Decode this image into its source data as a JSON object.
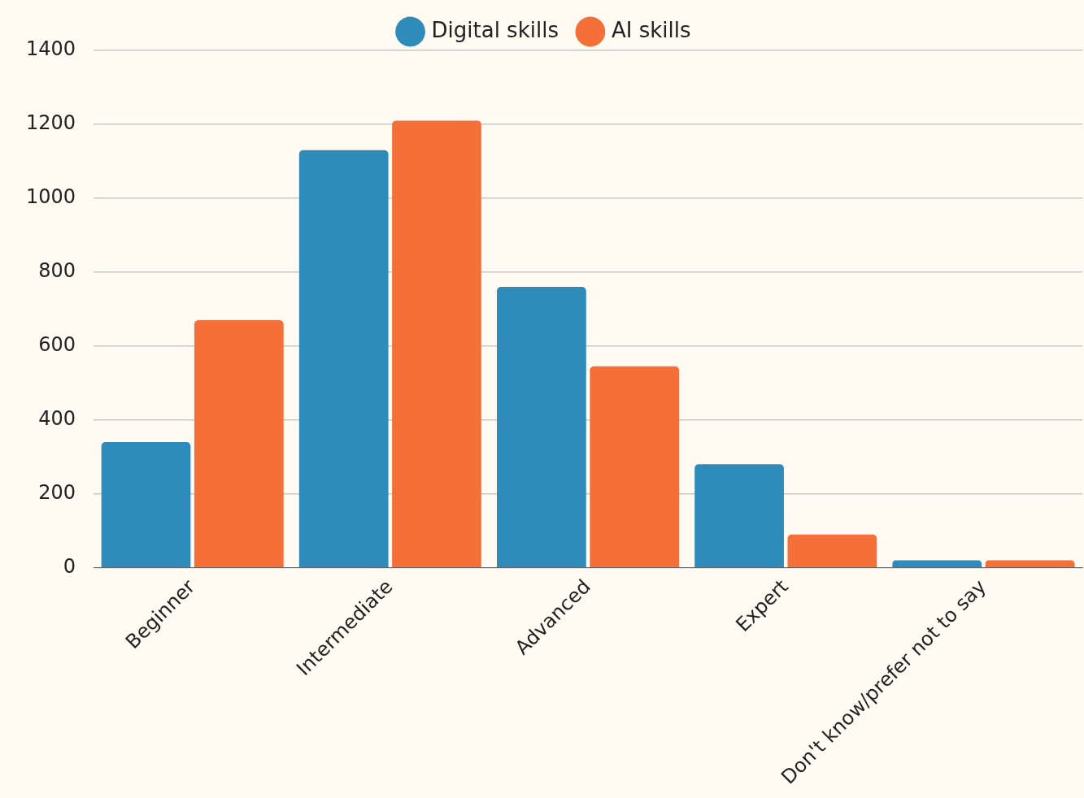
{
  "chart_data": {
    "type": "bar",
    "categories": [
      "Beginner",
      "Intermediate",
      "Advanced",
      "Expert",
      "Don't know/prefer not to say"
    ],
    "series": [
      {
        "name": "Digital skills",
        "color": "#2e8bba",
        "values": [
          340,
          1130,
          760,
          280,
          20
        ]
      },
      {
        "name": "AI skills",
        "color": "#f56f39",
        "values": [
          670,
          1210,
          545,
          90,
          20
        ]
      }
    ],
    "ylim": [
      0,
      1400
    ],
    "yticks": [
      0,
      200,
      400,
      600,
      800,
      1000,
      1200,
      1400
    ],
    "grid": "y",
    "legend": "top"
  }
}
